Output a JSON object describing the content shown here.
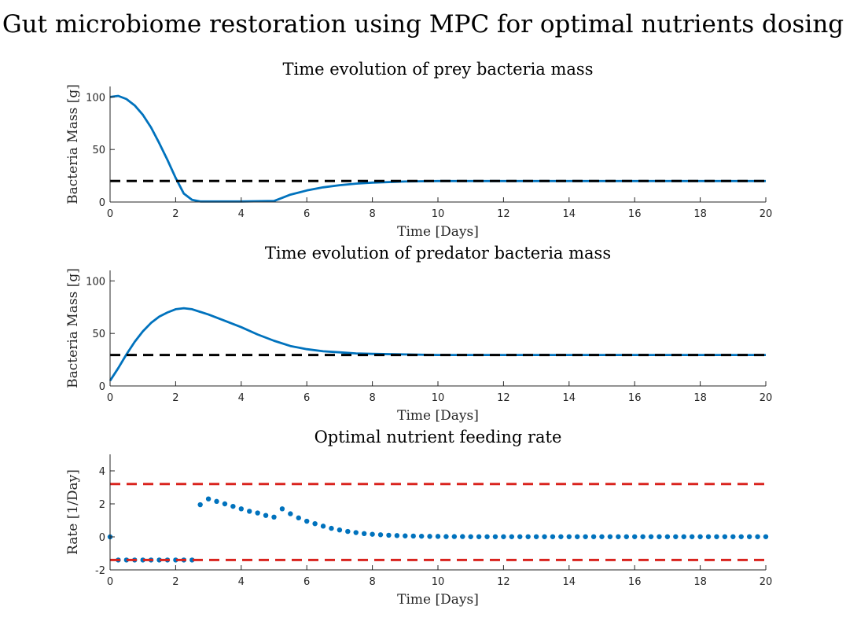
{
  "figure_title": "Gut microbiome restoration using MPC for optimal nutrients dosing",
  "colors": {
    "series": "#0072BD",
    "reference": "#000000",
    "bounds": "#D9231E",
    "axis": "#262626"
  },
  "chart_data": [
    {
      "type": "line",
      "title": "Time evolution of prey bacteria mass",
      "xlabel": "Time [Days]",
      "ylabel": "Bacteria Mass [g]",
      "xlim": [
        0,
        20
      ],
      "ylim": [
        0,
        110
      ],
      "xticks": [
        0,
        2,
        4,
        6,
        8,
        10,
        12,
        14,
        16,
        18,
        20
      ],
      "yticks": [
        0,
        50,
        100
      ],
      "grid": false,
      "series": [
        {
          "style": "solid",
          "color": "#0072BD",
          "x": [
            0,
            0.25,
            0.5,
            0.75,
            1.0,
            1.25,
            1.5,
            1.75,
            2.0,
            2.25,
            2.5,
            2.75,
            3.0,
            4.0,
            5.0,
            5.25,
            5.5,
            6.0,
            6.5,
            7.0,
            7.5,
            8.0,
            9.0,
            10.0,
            12.0,
            14.0,
            16.0,
            18.0,
            20.0
          ],
          "y": [
            100,
            101,
            98,
            92,
            83,
            71,
            56,
            40,
            23,
            8,
            2,
            0.5,
            0.5,
            0.5,
            1,
            4,
            7,
            11,
            14,
            16,
            17.5,
            18.5,
            19.5,
            20,
            20,
            20,
            20,
            20,
            20
          ]
        },
        {
          "style": "dashed",
          "color": "#000000",
          "x": [
            0,
            20
          ],
          "y": [
            20,
            20
          ]
        }
      ]
    },
    {
      "type": "line",
      "title": "Time evolution of predator bacteria mass",
      "xlabel": "Time [Days]",
      "ylabel": "Bacteria Mass [g]",
      "xlim": [
        0,
        20
      ],
      "ylim": [
        0,
        110
      ],
      "xticks": [
        0,
        2,
        4,
        6,
        8,
        10,
        12,
        14,
        16,
        18,
        20
      ],
      "yticks": [
        0,
        50,
        100
      ],
      "grid": false,
      "series": [
        {
          "style": "solid",
          "color": "#0072BD",
          "x": [
            0,
            0.25,
            0.5,
            0.75,
            1.0,
            1.25,
            1.5,
            1.75,
            2.0,
            2.25,
            2.5,
            3.0,
            3.5,
            4.0,
            4.5,
            5.0,
            5.5,
            6.0,
            6.5,
            7.0,
            7.5,
            8.0,
            9.0,
            10.0,
            12.0,
            14.0,
            16.0,
            18.0,
            20.0
          ],
          "y": [
            5,
            17,
            30,
            42,
            52,
            60,
            66,
            70,
            73,
            74,
            73,
            68,
            62,
            56,
            49,
            43,
            38,
            35,
            33,
            32,
            31,
            30.5,
            30,
            29.5,
            29.5,
            29.5,
            29.5,
            29.5,
            29.5
          ]
        },
        {
          "style": "dashed",
          "color": "#000000",
          "x": [
            0,
            20
          ],
          "y": [
            29.5,
            29.5
          ]
        }
      ]
    },
    {
      "type": "scatter",
      "title": "Optimal nutrient feeding rate",
      "xlabel": "Time [Days]",
      "ylabel": "Rate [1/Day]",
      "xlim": [
        0,
        20
      ],
      "ylim": [
        -2,
        5
      ],
      "xticks": [
        0,
        2,
        4,
        6,
        8,
        10,
        12,
        14,
        16,
        18,
        20
      ],
      "yticks": [
        -2,
        0,
        2,
        4
      ],
      "grid": false,
      "series": [
        {
          "style": "markers",
          "color": "#0072BD",
          "x": [
            0,
            0.25,
            0.5,
            0.75,
            1.0,
            1.25,
            1.5,
            1.75,
            2.0,
            2.25,
            2.5,
            2.75,
            3.0,
            3.25,
            3.5,
            3.75,
            4.0,
            4.25,
            4.5,
            4.75,
            5.0,
            5.25,
            5.5,
            5.75,
            6.0,
            6.25,
            6.5,
            6.75,
            7.0,
            7.25,
            7.5,
            7.75,
            8.0,
            8.25,
            8.5,
            8.75,
            9.0,
            9.25,
            9.5,
            9.75,
            10.0,
            10.25,
            10.5,
            10.75,
            11.0,
            11.25,
            11.5,
            11.75,
            12.0,
            12.25,
            12.5,
            12.75,
            13.0,
            13.25,
            13.5,
            13.75,
            14.0,
            14.25,
            14.5,
            14.75,
            15.0,
            15.25,
            15.5,
            15.75,
            16.0,
            16.25,
            16.5,
            16.75,
            17.0,
            17.25,
            17.5,
            17.75,
            18.0,
            18.25,
            18.5,
            18.75,
            19.0,
            19.25,
            19.5,
            19.75,
            20.0
          ],
          "y": [
            0,
            -1.4,
            -1.4,
            -1.4,
            -1.4,
            -1.4,
            -1.4,
            -1.4,
            -1.4,
            -1.4,
            -1.4,
            1.95,
            2.3,
            2.15,
            2.0,
            1.85,
            1.7,
            1.55,
            1.45,
            1.3,
            1.2,
            1.7,
            1.4,
            1.15,
            0.95,
            0.8,
            0.65,
            0.52,
            0.42,
            0.33,
            0.26,
            0.2,
            0.16,
            0.13,
            0.1,
            0.08,
            0.06,
            0.05,
            0.04,
            0.03,
            0.03,
            0.02,
            0.02,
            0.02,
            0.01,
            0.01,
            0.01,
            0.01,
            0.01,
            0.01,
            0.01,
            0.01,
            0.01,
            0.01,
            0.01,
            0.01,
            0.01,
            0.01,
            0.01,
            0.01,
            0.01,
            0.01,
            0.01,
            0.01,
            0.01,
            0.01,
            0.01,
            0.01,
            0.01,
            0.01,
            0.01,
            0.01,
            0.01,
            0.01,
            0.01,
            0.01,
            0.01,
            0.01,
            0.01,
            0.01,
            0.01
          ]
        },
        {
          "style": "dashed",
          "color": "#D9231E",
          "x": [
            0,
            20
          ],
          "y": [
            3.2,
            3.2
          ]
        },
        {
          "style": "dashed",
          "color": "#D9231E",
          "x": [
            0,
            20
          ],
          "y": [
            -1.4,
            -1.4
          ]
        }
      ]
    }
  ]
}
